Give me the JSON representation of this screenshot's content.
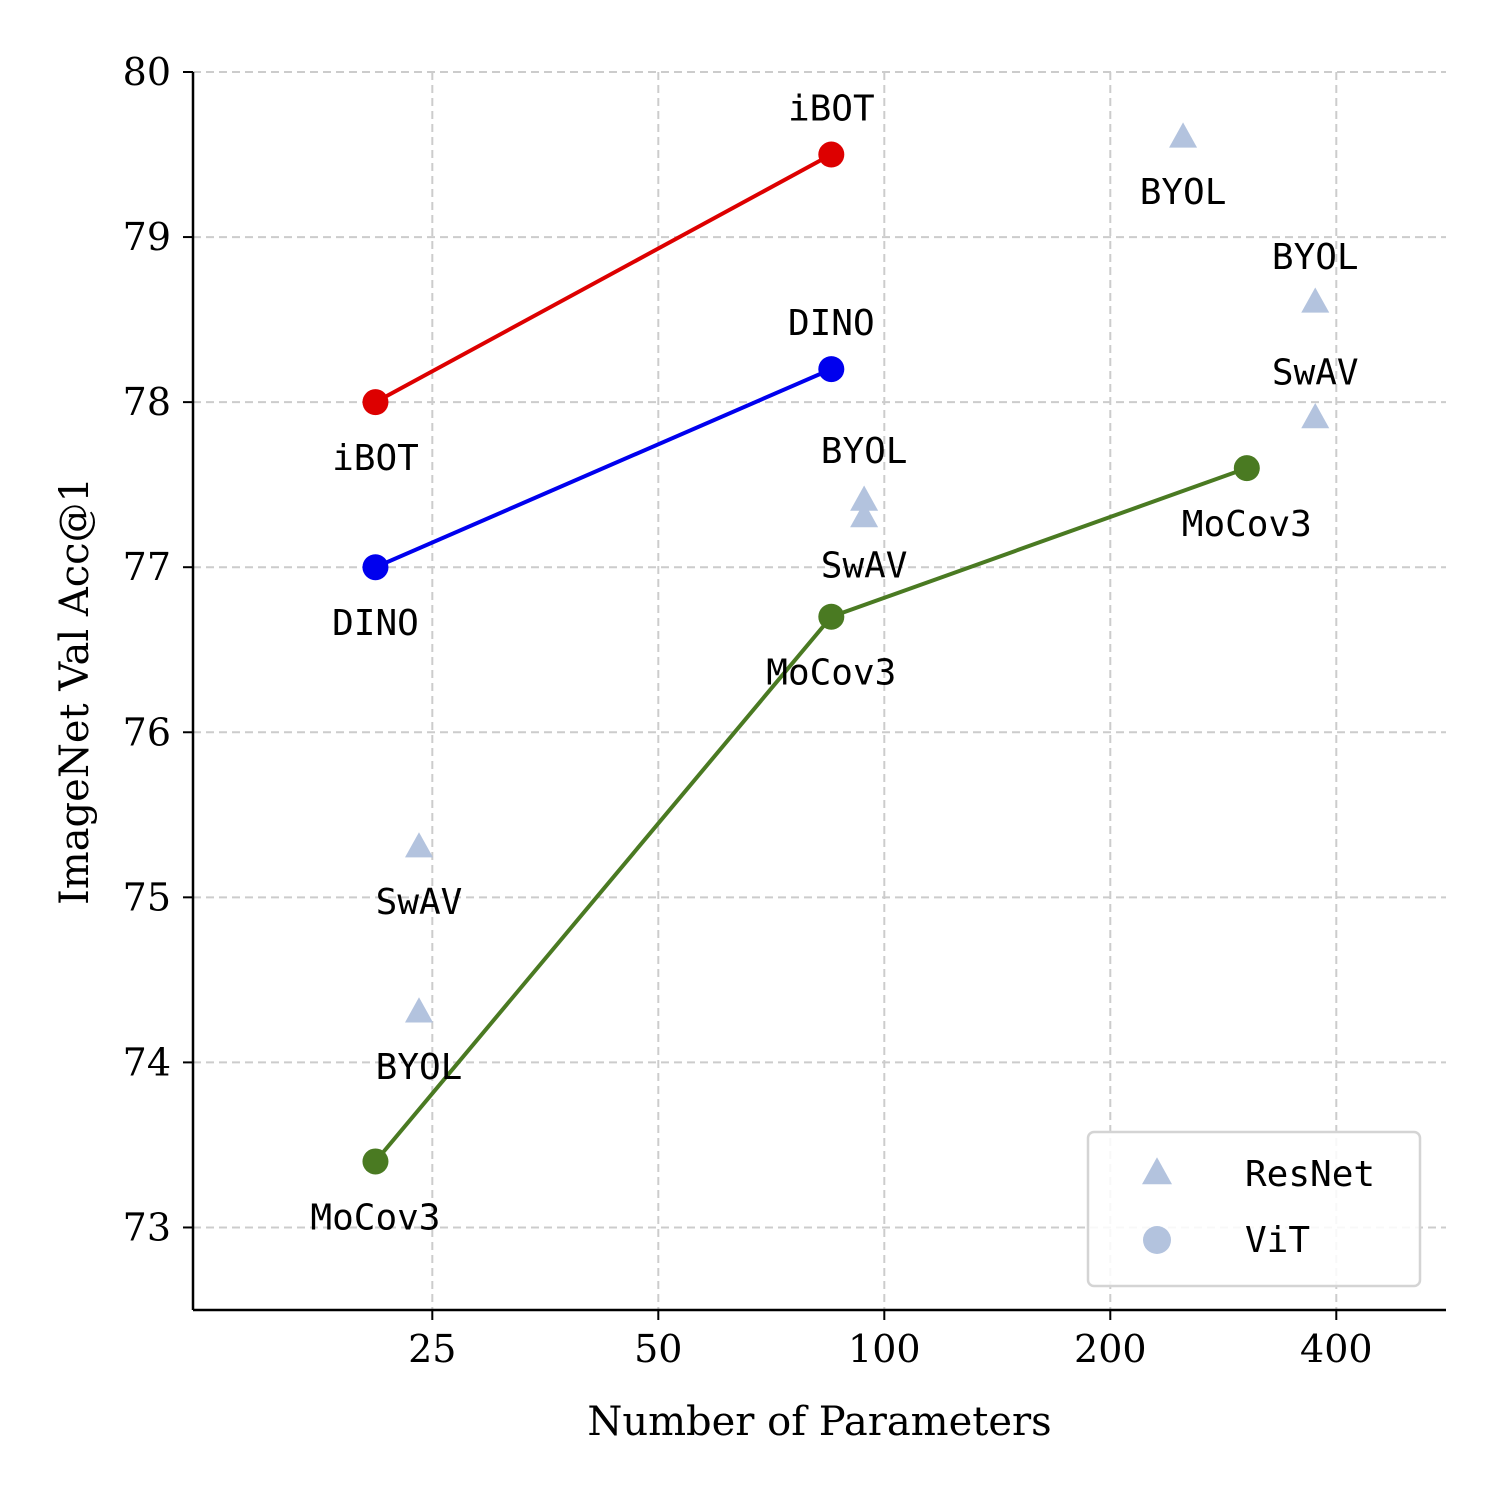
{
  "chart_data": {
    "type": "scatter",
    "title": "",
    "xlabel": "Number of Parameters",
    "ylabel": "ImageNet Val Acc@1",
    "x_scale": "log",
    "xlim": [
      12,
      560
    ],
    "ylim": [
      72.5,
      80
    ],
    "x_ticks": [
      25,
      50,
      100,
      200,
      400
    ],
    "y_ticks": [
      73,
      74,
      75,
      76,
      77,
      78,
      79,
      80
    ],
    "grid": true,
    "legend_position": "lower-right",
    "legend": [
      {
        "label": "ResNet",
        "marker": "triangle",
        "color": "#b3c3de"
      },
      {
        "label": "ViT",
        "marker": "circle",
        "color": "#b3c3de"
      }
    ],
    "series": [
      {
        "name": "iBOT",
        "architecture": "ViT",
        "color": "#dd0000",
        "x": [
          21,
          85
        ],
        "y": [
          78.0,
          79.5
        ],
        "labels": [
          "iBOT",
          "iBOT"
        ]
      },
      {
        "name": "DINO",
        "architecture": "ViT",
        "color": "#0000ee",
        "x": [
          21,
          85
        ],
        "y": [
          77.0,
          78.2
        ],
        "labels": [
          "DINO",
          "DINO"
        ]
      },
      {
        "name": "MoCov3",
        "architecture": "ViT",
        "color": "#4a7a22",
        "x": [
          21,
          85,
          304
        ],
        "y": [
          73.4,
          76.7,
          77.6
        ],
        "labels": [
          "MoCov3",
          "MoCov3",
          "MoCov3"
        ]
      }
    ],
    "resnet_points": [
      {
        "label": "SwAV",
        "x": 24,
        "y": 75.3
      },
      {
        "label": "BYOL",
        "x": 24,
        "y": 74.3
      },
      {
        "label": "BYOL",
        "x": 94,
        "y": 77.4
      },
      {
        "label": "SwAV",
        "x": 94,
        "y": 77.3
      },
      {
        "label": "BYOL",
        "x": 250,
        "y": 79.6
      },
      {
        "label": "BYOL",
        "x": 375,
        "y": 78.6
      },
      {
        "label": "SwAV",
        "x": 375,
        "y": 77.9
      }
    ]
  }
}
